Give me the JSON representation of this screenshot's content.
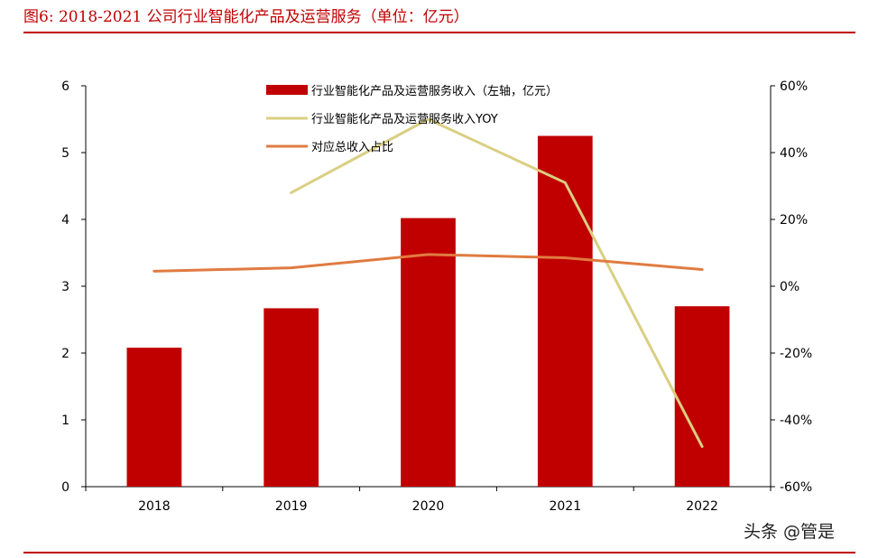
{
  "figure": {
    "title": "图6:  2018-2021 公司行业智能化产品及运营服务（单位：亿元）",
    "watermark": "头条 @管是"
  },
  "colors": {
    "accent": "#c00000",
    "bar": "#c00000",
    "yoy": "#d9cf82",
    "share": "#e07b40"
  },
  "chart_data": {
    "type": "bar",
    "categories": [
      "2018",
      "2019",
      "2020",
      "2021",
      "2022"
    ],
    "series": [
      {
        "name": "行业智能化产品及运营服务收入（左轴，亿元）",
        "kind": "bar",
        "axis": "left",
        "values": [
          2.08,
          2.67,
          4.02,
          5.25,
          2.7
        ]
      },
      {
        "name": "行业智能化产品及运营服务收入YOY",
        "kind": "line",
        "axis": "right",
        "values": [
          null,
          28,
          50,
          31,
          -48
        ]
      },
      {
        "name": "对应总收入占比",
        "kind": "line",
        "axis": "right",
        "values": [
          4.5,
          5.5,
          9.5,
          8.5,
          5
        ]
      }
    ],
    "y_left": {
      "min": 0,
      "max": 6,
      "ticks": [
        "0",
        "1",
        "2",
        "3",
        "4",
        "5",
        "6"
      ]
    },
    "y_right": {
      "min": -60,
      "max": 60,
      "ticks": [
        "-60%",
        "-40%",
        "-20%",
        "0%",
        "20%",
        "40%",
        "60%"
      ]
    },
    "legend_position": "top-center",
    "grid": false
  }
}
